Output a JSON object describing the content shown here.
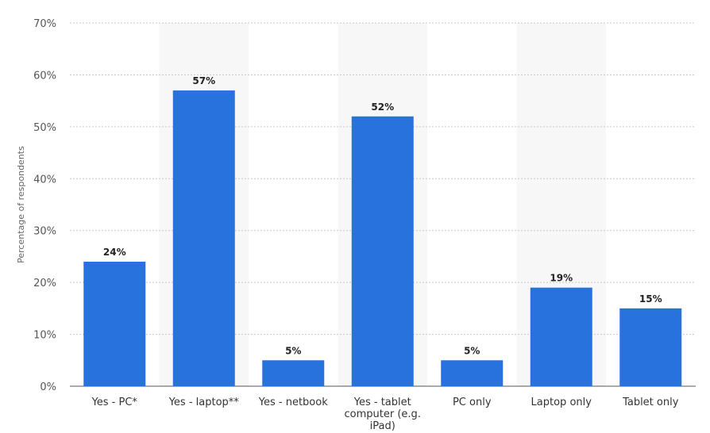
{
  "chart_data": {
    "type": "bar",
    "ylabel": "Percentage of respondents",
    "categories": [
      [
        "Yes - PC*"
      ],
      [
        "Yes - laptop**"
      ],
      [
        "Yes - netbook"
      ],
      [
        "Yes - tablet",
        "computer (e.g.",
        "iPad)"
      ],
      [
        "PC only"
      ],
      [
        "Laptop only"
      ],
      [
        "Tablet only"
      ]
    ],
    "values": [
      24,
      57,
      5,
      52,
      5,
      19,
      15
    ],
    "value_labels": [
      "24%",
      "57%",
      "5%",
      "52%",
      "5%",
      "19%",
      "15%"
    ],
    "yticks": [
      "0%",
      "10%",
      "20%",
      "30%",
      "40%",
      "50%",
      "60%",
      "70%"
    ],
    "ylim": [
      0,
      70
    ],
    "grid": true,
    "bar_color": "#2872dd",
    "band_color": "#f7f7f7",
    "grid_color": "#c8c8c8"
  }
}
